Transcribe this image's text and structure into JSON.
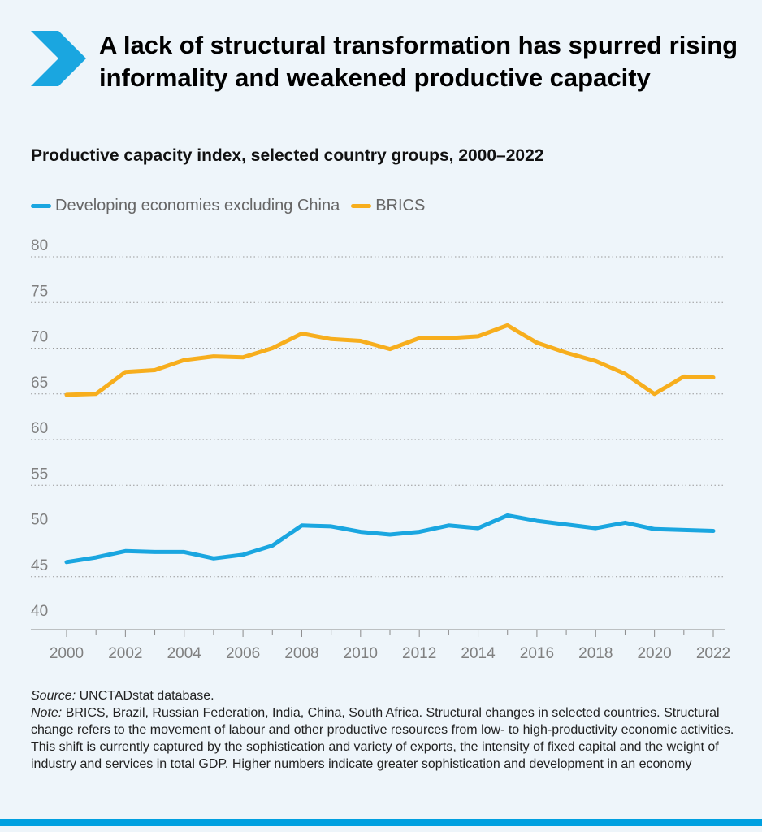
{
  "headline": "A lack of structural transformation has spurred rising informality and weakened productive capacity",
  "colors": {
    "background": "#eef5fa",
    "accent": "#1aa6e0",
    "series_developing": "#1aa6e0",
    "series_brics": "#f7ae1d",
    "gridline": "#9a9a9a",
    "tick_text": "#808080"
  },
  "icons": {
    "headline_marker": "chevron-right-icon"
  },
  "chart_data": {
    "type": "line",
    "title": "Productive capacity index, selected country groups, 2000–2022",
    "x": [
      2000,
      2001,
      2002,
      2003,
      2004,
      2005,
      2006,
      2007,
      2008,
      2009,
      2010,
      2011,
      2012,
      2013,
      2014,
      2015,
      2016,
      2017,
      2018,
      2019,
      2020,
      2021,
      2022
    ],
    "x_tick_labels": [
      "2000",
      "2002",
      "2004",
      "2006",
      "2008",
      "2010",
      "2012",
      "2014",
      "2016",
      "2018",
      "2020",
      "2022"
    ],
    "y_ticks": [
      40,
      45,
      50,
      55,
      60,
      65,
      70,
      75,
      80
    ],
    "ylim": [
      40,
      80
    ],
    "xlim": [
      2000,
      2022
    ],
    "grid": true,
    "legend_position": "top-left",
    "series": [
      {
        "name": "Developing economies excluding China",
        "color": "#1aa6e0",
        "values": [
          46.6,
          47.1,
          47.8,
          47.7,
          47.7,
          47.0,
          47.4,
          48.4,
          50.6,
          50.5,
          49.9,
          49.6,
          49.9,
          50.6,
          50.3,
          51.7,
          51.1,
          50.7,
          50.3,
          50.9,
          50.2,
          50.1,
          50.0
        ]
      },
      {
        "name": "BRICS",
        "color": "#f7ae1d",
        "values": [
          64.9,
          65.0,
          67.4,
          67.6,
          68.7,
          69.1,
          69.0,
          70.0,
          71.6,
          71.0,
          70.8,
          69.9,
          71.1,
          71.1,
          71.3,
          72.5,
          70.6,
          69.5,
          68.6,
          67.2,
          65.0,
          66.9,
          66.8
        ]
      }
    ]
  },
  "footer": {
    "source_label": "Source:",
    "source_text": " UNCTADstat database.",
    "note_label": "Note:",
    "note_text": " BRICS, Brazil, Russian Federation, India, China, South Africa. Structural changes in selected countries. Structural change refers to the movement of labour and other productive resources from low- to high-productivity economic activities. This shift is currently captured by the sophistication and variety of exports, the intensity of fixed capital and the weight of industry and services in total GDP. Higher numbers indicate greater sophistication and development in an economy"
  }
}
